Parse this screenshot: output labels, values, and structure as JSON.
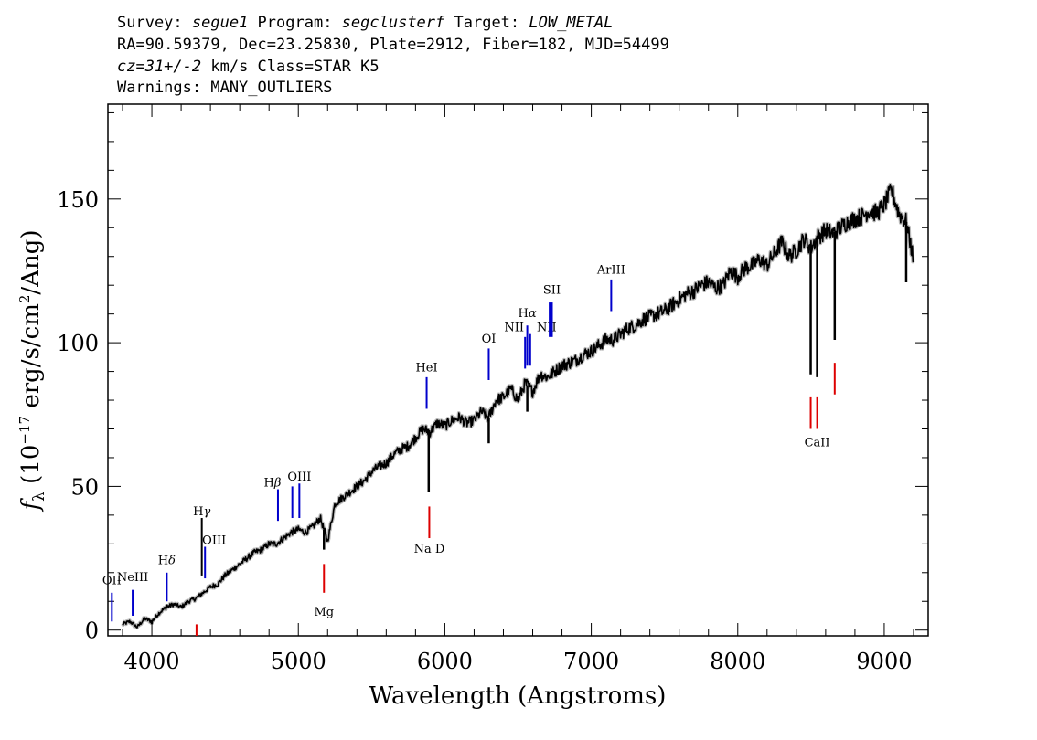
{
  "header": {
    "line1": [
      {
        "text": "Survey: ",
        "italic": false
      },
      {
        "text": "segue1",
        "italic": true
      },
      {
        "text": " Program: ",
        "italic": false
      },
      {
        "text": "segclusterf",
        "italic": true
      },
      {
        "text": " Target: ",
        "italic": false
      },
      {
        "text": "LOW_METAL",
        "italic": true
      }
    ],
    "line2": "RA=90.59379, Dec=23.25830, Plate=2912, Fiber=182, MJD=54499",
    "line3": [
      {
        "text": "cz=31+/-2",
        "italic": true
      },
      {
        "text": " km/s Class=STAR K5",
        "italic": false
      }
    ],
    "line4": "Warnings: MANY_OUTLIERS"
  },
  "chart_data": {
    "type": "line",
    "xlabel": "Wavelength (Angstroms)",
    "ylabel": {
      "f": "f",
      "sub": "λ",
      "pre": " (10",
      "exp1": "−17",
      "mid": " erg/s/cm",
      "exp2": "2",
      "post": "/Ang)"
    },
    "xlim": [
      3700,
      9300
    ],
    "ylim": [
      -2,
      183
    ],
    "x_ticks": [
      4000,
      5000,
      6000,
      7000,
      8000,
      9000
    ],
    "y_ticks": [
      0,
      50,
      100,
      150
    ],
    "grid": false,
    "series": [
      {
        "color": "#000000",
        "x": [
          3800,
          3850,
          3900,
          3950,
          4000,
          4050,
          4100,
          4150,
          4200,
          4250,
          4300,
          4350,
          4400,
          4450,
          4500,
          4550,
          4600,
          4650,
          4700,
          4750,
          4800,
          4850,
          4900,
          4950,
          5000,
          5050,
          5100,
          5150,
          5200,
          5250,
          5300,
          5350,
          5400,
          5450,
          5500,
          5550,
          5600,
          5650,
          5700,
          5750,
          5800,
          5850,
          5900,
          5950,
          6000,
          6050,
          6100,
          6150,
          6200,
          6250,
          6300,
          6350,
          6400,
          6450,
          6500,
          6550,
          6600,
          6650,
          6700,
          6750,
          6800,
          6850,
          6900,
          6950,
          7000,
          7050,
          7100,
          7150,
          7200,
          7250,
          7300,
          7350,
          7400,
          7450,
          7500,
          7550,
          7600,
          7650,
          7700,
          7750,
          7800,
          7850,
          7900,
          7950,
          8000,
          8050,
          8100,
          8150,
          8200,
          8250,
          8300,
          8350,
          8400,
          8450,
          8500,
          8550,
          8600,
          8650,
          8700,
          8750,
          8800,
          8850,
          8900,
          8950,
          9000,
          9050,
          9100,
          9150,
          9200
        ],
        "y": [
          2,
          3,
          1,
          4,
          3,
          6,
          8,
          9,
          8,
          10,
          11,
          13,
          15,
          16,
          19,
          21,
          23,
          25,
          27,
          28,
          30,
          30,
          32,
          34,
          35,
          34,
          36,
          39,
          31,
          44,
          46,
          48,
          50,
          52,
          55,
          57,
          58,
          61,
          63,
          64,
          67,
          70,
          69,
          72,
          71,
          73,
          74,
          72,
          73,
          76,
          74,
          80,
          81,
          84,
          80,
          86,
          83,
          89,
          88,
          90,
          92,
          93,
          94,
          96,
          97,
          99,
          101,
          101,
          103,
          105,
          106,
          108,
          109,
          110,
          111,
          113,
          115,
          117,
          118,
          120,
          121,
          119,
          120,
          125,
          123,
          126,
          127,
          129,
          127,
          131,
          135,
          130,
          132,
          136,
          133,
          137,
          139,
          138,
          140,
          142,
          143,
          144,
          146,
          145,
          148,
          153,
          145,
          142,
          129
        ]
      }
    ],
    "features": [
      {
        "x": 4000,
        "y": 2
      },
      {
        "x": 4100,
        "y": 9
      },
      {
        "x": 4340,
        "y": 13
      },
      {
        "x": 4862,
        "y": 30
      },
      {
        "x": 5175,
        "y": 28
      },
      {
        "x": 5890,
        "y": 48
      },
      {
        "x": 6300,
        "y": 65
      },
      {
        "x": 6563,
        "y": 76
      },
      {
        "x": 8498,
        "y": 89
      },
      {
        "x": 8542,
        "y": 88
      },
      {
        "x": 8662,
        "y": 101
      },
      {
        "x": 9150,
        "y": 121
      }
    ],
    "annotations": [
      {
        "label": "OII",
        "x": 3727,
        "y1": 3,
        "y2": 13,
        "ly": 16,
        "color": "#0000cc",
        "dx": 0
      },
      {
        "label": "NeIII",
        "x": 3869,
        "y1": 5,
        "y2": 14,
        "ly": 17,
        "color": "#0000cc",
        "dx": 0
      },
      {
        "label": "H",
        "greek": "δ",
        "x": 4102,
        "y1": 10,
        "y2": 20,
        "ly": 23,
        "color": "#0000cc",
        "dx": 0
      },
      {
        "label": "H",
        "greek": "γ",
        "x": 4341,
        "y1": 19,
        "y2": 39,
        "ly": 40,
        "color": "#000000",
        "dx": 0
      },
      {
        "label": "OIII",
        "x": 4363,
        "y1": 18,
        "y2": 29,
        "ly": 30,
        "color": "#0000cc",
        "dx": 10
      },
      {
        "label": "H",
        "greek": "β",
        "x": 4861,
        "y1": 38,
        "y2": 49,
        "ly": 50,
        "color": "#0000cc",
        "dx": -6
      },
      {
        "label": "",
        "x": 4959,
        "y1": 39,
        "y2": 50,
        "ly": 0,
        "color": "#0000cc",
        "dx": 0
      },
      {
        "label": "OIII",
        "x": 5007,
        "y1": 39,
        "y2": 51,
        "ly": 52,
        "color": "#0000cc",
        "dx": 0
      },
      {
        "label": "HeI",
        "x": 5876,
        "y1": 77,
        "y2": 88,
        "ly": 90,
        "color": "#0000cc",
        "dx": 0
      },
      {
        "label": "OI",
        "x": 6300,
        "y1": 87,
        "y2": 98,
        "ly": 100,
        "color": "#0000cc",
        "dx": 0
      },
      {
        "label": "NII",
        "x": 6548,
        "y1": 91,
        "y2": 102,
        "ly": 104,
        "color": "#0000cc",
        "dx": -12
      },
      {
        "label": "H",
        "greek": "α",
        "x": 6563,
        "y1": 92,
        "y2": 106,
        "ly": 109,
        "color": "#0000cc",
        "dx": 0
      },
      {
        "label": "NII",
        "x": 6583,
        "y1": 92,
        "y2": 103,
        "ly": 104,
        "color": "#0000cc",
        "dx": 18
      },
      {
        "label": "",
        "x": 6716,
        "y1": 102,
        "y2": 114,
        "ly": 0,
        "color": "#0000cc",
        "dx": 0
      },
      {
        "label": "SII",
        "x": 6731,
        "y1": 102,
        "y2": 114,
        "ly": 117,
        "color": "#0000cc",
        "dx": 0
      },
      {
        "label": "ArIII",
        "x": 7136,
        "y1": 111,
        "y2": 122,
        "ly": 124,
        "color": "#0000cc",
        "dx": 0
      },
      {
        "label": "",
        "x": 4305,
        "y1": -2,
        "y2": 2,
        "ly": 0,
        "color": "#dd0000",
        "dx": 0
      },
      {
        "label": "Mg",
        "x": 5175,
        "y1": 13,
        "y2": 23,
        "ly": 5,
        "color": "#dd0000",
        "dx": 0
      },
      {
        "label": "Na D",
        "x": 5894,
        "y1": 32,
        "y2": 43,
        "ly": 27,
        "color": "#dd0000",
        "dx": 0
      },
      {
        "label": "",
        "x": 8498,
        "y1": 70,
        "y2": 81,
        "ly": 0,
        "color": "#dd0000",
        "dx": 0
      },
      {
        "label": "CaII",
        "x": 8542,
        "y1": 70,
        "y2": 81,
        "ly": 64,
        "color": "#dd0000",
        "dx": 0
      },
      {
        "label": "",
        "x": 8662,
        "y1": 82,
        "y2": 93,
        "ly": 0,
        "color": "#dd0000",
        "dx": 0
      }
    ]
  }
}
